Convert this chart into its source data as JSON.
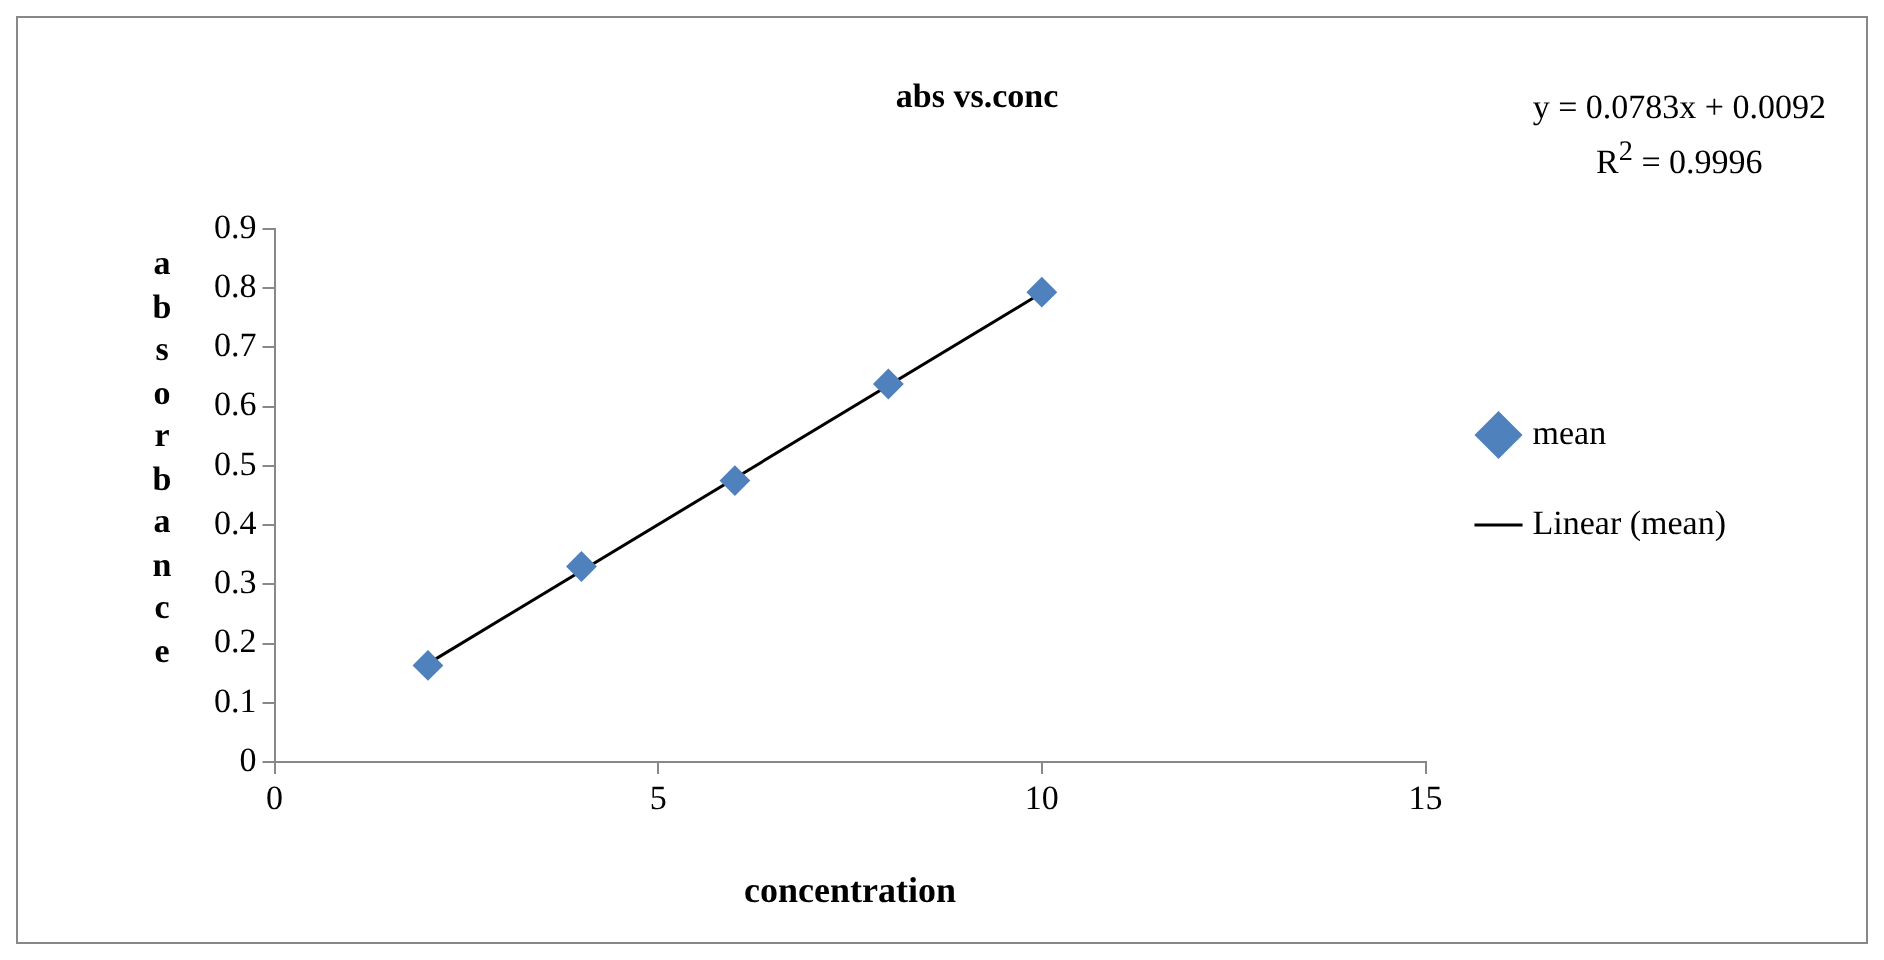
{
  "chart_data": {
    "type": "scatter",
    "title": "abs vs.conc",
    "xlabel": "concentration",
    "ylabel": "absorbance",
    "annotations": [
      "y = 0.0783x + 0.0092",
      "R$^{2}$ = 0.9996"
    ],
    "xlim": [
      0,
      15
    ],
    "xticks": [
      0,
      5,
      10,
      15
    ],
    "ylim": [
      0,
      0.9
    ],
    "yticks": [
      0,
      0.1,
      0.2,
      0.3,
      0.4,
      0.5,
      0.6,
      0.7,
      0.8,
      0.9
    ],
    "grid": false,
    "legend": "right",
    "marker": "diamond",
    "series": [
      {
        "name": "mean",
        "type": "scatter",
        "color": "#4f81bd",
        "x": [
          2,
          4,
          6,
          8,
          10
        ],
        "values": [
          0.163,
          0.33,
          0.475,
          0.638,
          0.793
        ]
      },
      {
        "name": "Linear (mean)",
        "type": "line",
        "color": "#000000",
        "x": [
          2,
          10
        ],
        "values": [
          0.166,
          0.792
        ],
        "marker": "none",
        "line_style": "solid"
      }
    ]
  }
}
